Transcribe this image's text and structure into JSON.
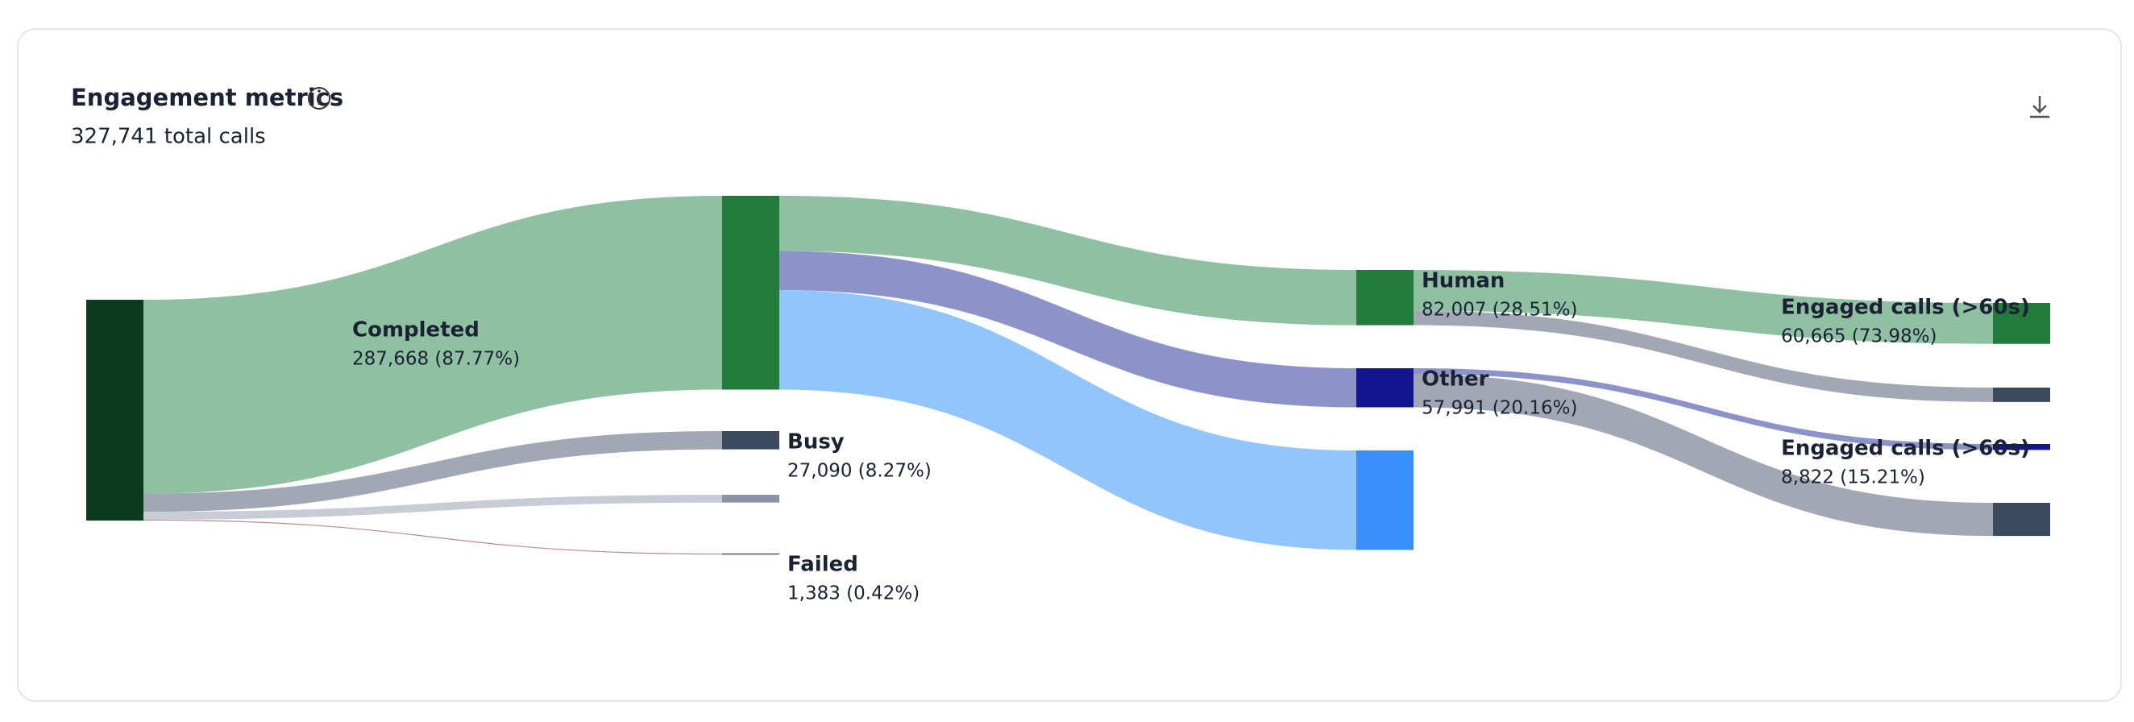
{
  "chart_data": {
    "type": "sankey",
    "title": "Engagement metrics",
    "subtitle": "327,741 total calls",
    "nodes": [
      {
        "name": null,
        "value": 327741,
        "color": "#0c3a1f"
      },
      {
        "name": "Completed",
        "value": 287668,
        "value_label": "287,668 (87.77%)",
        "color": "#217c3b"
      },
      {
        "name": "Busy",
        "value": 27090,
        "value_label": "27,090 (8.27%)",
        "color": "#3b4a5e"
      },
      {
        "name": null,
        "value": 11600,
        "color": "#8a93a8"
      },
      {
        "name": "Failed",
        "value": 1383,
        "value_label": "1,383 (0.42%)",
        "color": "#7a0e0e"
      },
      {
        "name": "Human",
        "value": 82007,
        "value_label": "82,007 (28.51%)",
        "color": "#217c3b"
      },
      {
        "name": "Other",
        "value": 57991,
        "value_label": "57,991 (20.16%)",
        "color": "#13148f"
      },
      {
        "name": null,
        "value": 147670,
        "color": "#3b8ffd"
      },
      {
        "name": "Engaged calls (>60s)",
        "value": 60665,
        "value_label": "60,665 (73.98%)",
        "color": "#217c3b"
      },
      {
        "name": null,
        "value": 21342,
        "color": "#3b4a5e"
      },
      {
        "name": "Engaged calls (>60s)",
        "value": 8822,
        "value_label": "8,822 (15.21%)",
        "color": "#13148f"
      },
      {
        "name": null,
        "value": 49169,
        "color": "#3b4a5e"
      }
    ],
    "links": [
      {
        "source": 0,
        "target": 1,
        "value": 287668,
        "color": "#8fc0a1"
      },
      {
        "source": 0,
        "target": 2,
        "value": 27090,
        "color": "#a1a8b4"
      },
      {
        "source": 0,
        "target": 3,
        "value": 11600,
        "color": "#c8ccd6"
      },
      {
        "source": 0,
        "target": 4,
        "value": 1383,
        "color": "#bc8a8d"
      },
      {
        "source": 1,
        "target": 5,
        "value": 82007,
        "color": "#8fc0a1"
      },
      {
        "source": 1,
        "target": 6,
        "value": 57991,
        "color": "#8c93c8"
      },
      {
        "source": 1,
        "target": 7,
        "value": 147670,
        "color": "#93c5fd"
      },
      {
        "source": 5,
        "target": 8,
        "value": 60665,
        "color": "#8fc0a1"
      },
      {
        "source": 5,
        "target": 9,
        "value": 21342,
        "color": "#a1a8b4"
      },
      {
        "source": 6,
        "target": 10,
        "value": 8822,
        "color": "#8c93c8"
      },
      {
        "source": 6,
        "target": 11,
        "value": 49169,
        "color": "#a1a8b4"
      }
    ]
  }
}
